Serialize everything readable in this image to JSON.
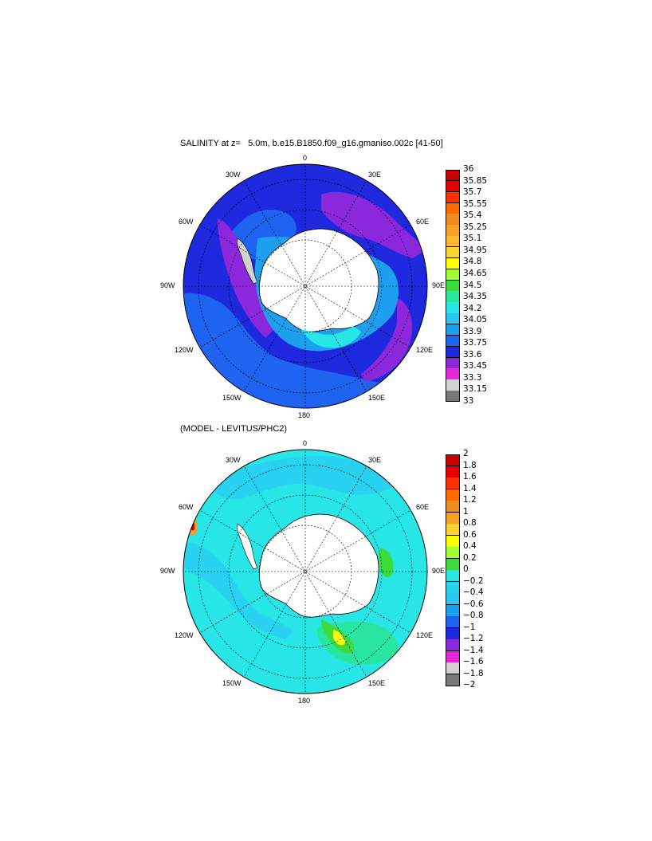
{
  "panel1": {
    "title": "SALINITY at z=   5.0m, b.e15.B1850.f09_g16.gmaniso.002c [41-50]",
    "colorbar": {
      "labels": [
        "36",
        "35.85",
        "35.7",
        "35.55",
        "35.4",
        "35.25",
        "35.1",
        "34.95",
        "34.8",
        "34.65",
        "34.5",
        "34.35",
        "34.2",
        "34.05",
        "33.9",
        "33.75",
        "33.6",
        "33.45",
        "33.3",
        "33.15",
        "33"
      ],
      "colors": [
        "#c80000",
        "#e80000",
        "#ff3000",
        "#ff6a00",
        "#f08c1e",
        "#f5a028",
        "#f8b830",
        "#fad232",
        "#ffff00",
        "#a0ff32",
        "#3cdc3c",
        "#28e6a0",
        "#28e6e6",
        "#28c8f0",
        "#1ea0f0",
        "#1e64f0",
        "#1e28dc",
        "#8c28dc",
        "#e628dc",
        "#d2d2d2",
        "#787878"
      ]
    }
  },
  "panel2": {
    "title": "(MODEL - LEVITUS/PHC2)",
    "colorbar": {
      "labels": [
        "2",
        "1.8",
        "1.6",
        "1.4",
        "1.2",
        "1",
        "0.8",
        "0.6",
        "0.4",
        "0.2",
        "0",
        "−0.2",
        "−0.4",
        "−0.6",
        "−0.8",
        "−1",
        "−1.2",
        "−1.4",
        "−1.6",
        "−1.8",
        "−2"
      ],
      "colors": [
        "#c80000",
        "#e80000",
        "#ff3000",
        "#ff6a00",
        "#f08c1e",
        "#f5a028",
        "#fad232",
        "#ffff00",
        "#a0ff32",
        "#3cdc3c",
        "#28e6e6",
        "#28d2f0",
        "#28c8f0",
        "#1ea0f0",
        "#1e64f0",
        "#1e28dc",
        "#8c28dc",
        "#e628dc",
        "#d2d2d2",
        "#787878"
      ]
    }
  },
  "longitude_labels": {
    "top": "0",
    "bottom": "180",
    "left": "90W",
    "right": "90E",
    "w30": "30W",
    "e30": "30E",
    "w60": "60W",
    "e60": "60E",
    "w120": "120W",
    "e120": "120E",
    "w150": "150W",
    "e150": "150E"
  }
}
